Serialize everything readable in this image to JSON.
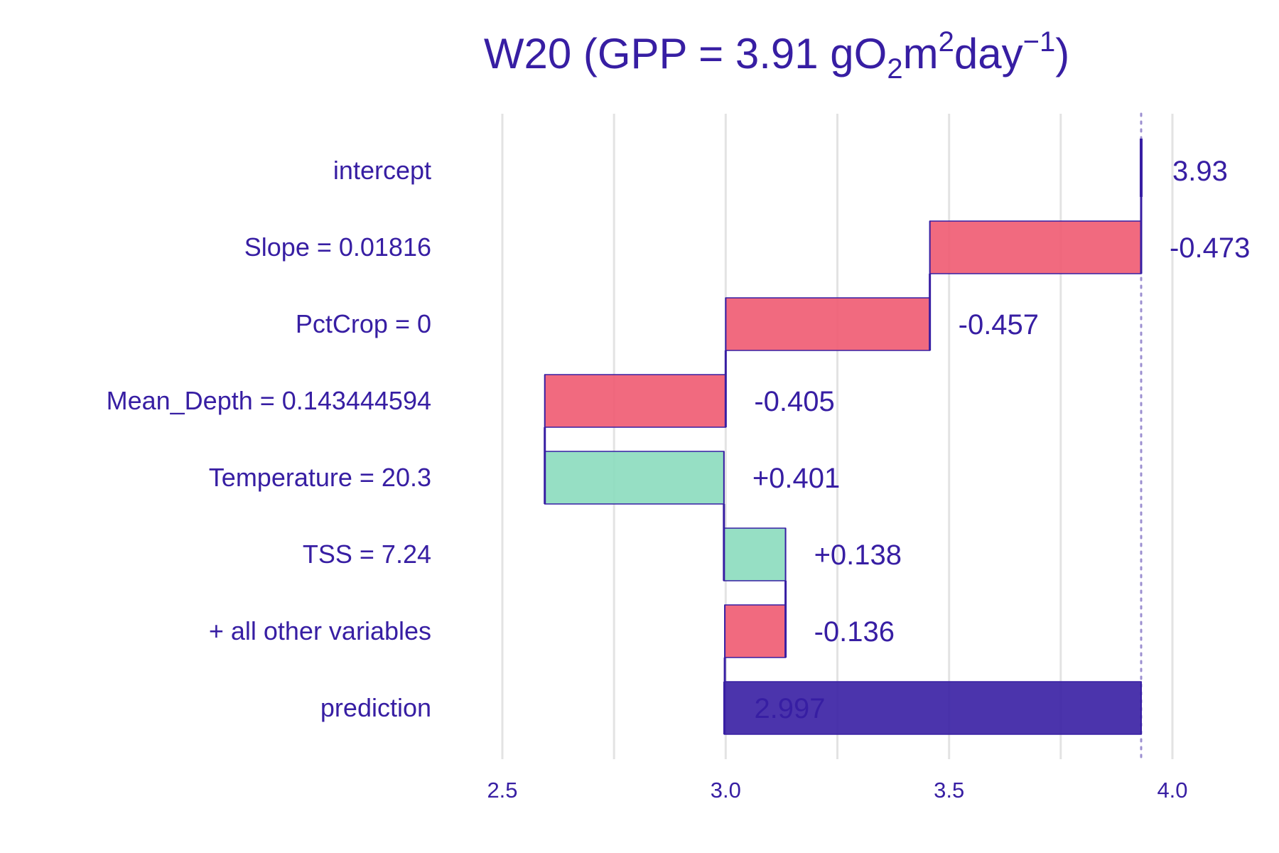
{
  "chart_data": {
    "type": "bar",
    "subtype": "waterfall",
    "title": {
      "prefix": "W20 (GPP = 3.91 gO",
      "sub": "2",
      "mid": "m",
      "sup1": "2",
      "mid2": "day",
      "sup2": "−1",
      "suffix": ")"
    },
    "xlim": [
      2.5,
      4.0
    ],
    "x_ticks": [
      2.5,
      3.0,
      3.5,
      4.0
    ],
    "x_tick_labels": [
      "2.5",
      "3.0",
      "3.5",
      "4.0"
    ],
    "grid": true,
    "reference_value": 3.93,
    "categories": [
      "intercept",
      "Slope = 0.01816",
      "PctCrop = 0",
      "Mean_Depth = 0.143444594",
      "Temperature = 20.3",
      "TSS = 7.24",
      "+ all other variables",
      "prediction"
    ],
    "bars": [
      {
        "label": "intercept",
        "start": 3.93,
        "end": 3.93,
        "kind": "intercept",
        "value_label": "3.93"
      },
      {
        "label": "Slope = 0.01816",
        "start": 3.93,
        "end": 3.457,
        "kind": "negative",
        "value_label": "-0.473"
      },
      {
        "label": "PctCrop = 0",
        "start": 3.457,
        "end": 3.0,
        "kind": "negative",
        "value_label": "-0.457"
      },
      {
        "label": "Mean_Depth = 0.143444594",
        "start": 3.0,
        "end": 2.595,
        "kind": "negative",
        "value_label": "-0.405"
      },
      {
        "label": "Temperature = 20.3",
        "start": 2.595,
        "end": 2.996,
        "kind": "positive",
        "value_label": "+0.401"
      },
      {
        "label": "TSS = 7.24",
        "start": 2.996,
        "end": 3.134,
        "kind": "positive",
        "value_label": "+0.138"
      },
      {
        "label": "+ all other variables",
        "start": 3.134,
        "end": 2.998,
        "kind": "negative",
        "value_label": "-0.136"
      },
      {
        "label": "prediction",
        "start": 2.997,
        "end": 3.93,
        "kind": "prediction",
        "value_label": "2.997"
      }
    ],
    "colors": {
      "negative": "#f05a71",
      "positive": "#8bdcbe",
      "prediction": "#371ea3",
      "text": "#371ea3",
      "grid": "#e3e3e3"
    }
  }
}
